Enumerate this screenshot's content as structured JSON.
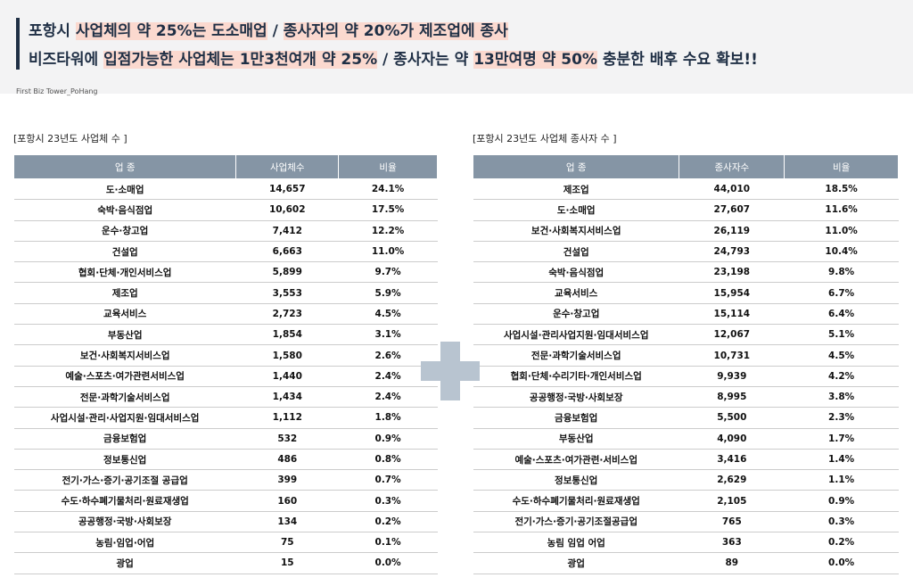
{
  "header": {
    "line1": [
      "포항시 ",
      "사업체의 약 25%는 도소매업",
      " / ",
      "종사자의 약 20%가 제조업에 종사"
    ],
    "line2": [
      "비즈타워에 ",
      "입점가능한 사업체는 1만3천여개 약 25%",
      " / 종사자는 약 ",
      "13만여명 약 50%",
      " 충분한 배후 수요 확보!!"
    ],
    "brand": "First Biz Tower_PoHang"
  },
  "tables": [
    {
      "title": "[포항시 23년도 사업체 수 ]",
      "columns": [
        "업  종",
        "사업체수",
        "비율"
      ],
      "rows": [
        [
          "도·소매업",
          "14,657",
          "24.1%"
        ],
        [
          "숙박·음식점업",
          "10,602",
          "17.5%"
        ],
        [
          "운수·창고업",
          "7,412",
          "12.2%"
        ],
        [
          "건설업",
          "6,663",
          "11.0%"
        ],
        [
          "협회·단체·개인서비스업",
          "5,899",
          "9.7%"
        ],
        [
          "제조업",
          "3,553",
          "5.9%"
        ],
        [
          "교육서비스",
          "2,723",
          "4.5%"
        ],
        [
          "부동산업",
          "1,854",
          "3.1%"
        ],
        [
          "보건·사회복지서비스업",
          "1,580",
          "2.6%"
        ],
        [
          "예술·스포츠·여가관련서비스업",
          "1,440",
          "2.4%"
        ],
        [
          "전문·과학기술서비스업",
          "1,434",
          "2.4%"
        ],
        [
          "사업시설·관리·사업지원·임대서비스업",
          "1,112",
          "1.8%"
        ],
        [
          "금융보험업",
          "532",
          "0.9%"
        ],
        [
          "정보통신업",
          "486",
          "0.8%"
        ],
        [
          "전기·가스·증기·공기조절 공급업",
          "399",
          "0.7%"
        ],
        [
          "수도·하수폐기물처리·원료재생업",
          "160",
          "0.3%"
        ],
        [
          "공공행정·국방·사회보장",
          "134",
          "0.2%"
        ],
        [
          "농림·임업·어업",
          "75",
          "0.1%"
        ],
        [
          "광업",
          "15",
          "0.0%"
        ]
      ]
    },
    {
      "title": "[포항시 23년도 사업체 종사자 수 ]",
      "columns": [
        "업  종",
        "종사자수",
        "비율"
      ],
      "rows": [
        [
          "제조업",
          "44,010",
          "18.5%"
        ],
        [
          "도·소매업",
          "27,607",
          "11.6%"
        ],
        [
          "보건·사회복지서비스업",
          "26,119",
          "11.0%"
        ],
        [
          "건설업",
          "24,793",
          "10.4%"
        ],
        [
          "숙박·음식점업",
          "23,198",
          "9.8%"
        ],
        [
          "교육서비스",
          "15,954",
          "6.7%"
        ],
        [
          "운수·창고업",
          "15,114",
          "6.4%"
        ],
        [
          "사업시설·관리사업지원·임대서비스업",
          "12,067",
          "5.1%"
        ],
        [
          "전문·과학기술서비스업",
          "10,731",
          "4.5%"
        ],
        [
          "협회·단체·수리기타·개인서비스업",
          "9,939",
          "4.2%"
        ],
        [
          "공공행정·국방·사회보장",
          "8,995",
          "3.8%"
        ],
        [
          "금융보험업",
          "5,500",
          "2.3%"
        ],
        [
          "부동산업",
          "4,090",
          "1.7%"
        ],
        [
          "예술·스포츠·여가관련·서비스업",
          "3,416",
          "1.4%"
        ],
        [
          "정보통신업",
          "2,629",
          "1.1%"
        ],
        [
          "수도·하수폐기물처리·원료재생업",
          "2,105",
          "0.9%"
        ],
        [
          "전기·가스·증기·공기조절공급업",
          "765",
          "0.3%"
        ],
        [
          "농림 임업 어업",
          "363",
          "0.2%"
        ],
        [
          "광업",
          "89",
          "0.0%"
        ]
      ]
    }
  ]
}
